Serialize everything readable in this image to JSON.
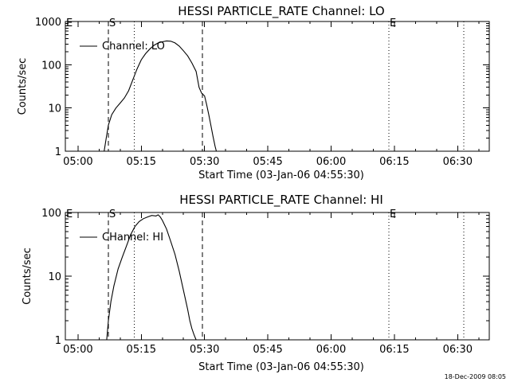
{
  "chart_data": [
    {
      "type": "line",
      "title": "HESSI PARTICLE_RATE Channel: LO",
      "xlabel": "Start Time (03-Jan-06 04:55:30)",
      "ylabel": "Counts/sec",
      "yscale": "log",
      "ylim": [
        1,
        1000
      ],
      "xlim_minutes": [
        -3,
        97.5
      ],
      "x_tick_labels": [
        "05:00",
        "05:15",
        "05:30",
        "05:45",
        "06:00",
        "06:15",
        "06:30"
      ],
      "x_tick_minutes": [
        0,
        15,
        30,
        45,
        60,
        75,
        90
      ],
      "y_tick_labels": [
        "1",
        "10",
        "100",
        "1000"
      ],
      "y_ticks": [
        1,
        10,
        100,
        1000
      ],
      "legend": "Channel: LO",
      "series": [
        {
          "name": "Channel: LO",
          "x_minutes": [
            6.2,
            6.7,
            7.2,
            8,
            9,
            10,
            11,
            12,
            13,
            14,
            15,
            16,
            17,
            18,
            19,
            20,
            21,
            22,
            23,
            24,
            25,
            26,
            27,
            28,
            28.7,
            29.3,
            30,
            30.5,
            31,
            31.5,
            32,
            32.5,
            32.8
          ],
          "y": [
            1,
            2,
            4,
            7,
            10,
            13,
            17,
            25,
            45,
            80,
            130,
            180,
            230,
            280,
            320,
            340,
            355,
            350,
            320,
            270,
            210,
            160,
            110,
            70,
            30,
            22,
            19,
            12,
            7,
            4,
            2.2,
            1.3,
            1
          ]
        }
      ],
      "vlines": [
        {
          "style": "dashed",
          "minute": 7.2,
          "label": "S"
        },
        {
          "style": "dotted",
          "minute": 13.3,
          "label": ""
        },
        {
          "style": "dashed",
          "minute": 29.5,
          "label": ""
        },
        {
          "style": "dotted",
          "minute": 73.7,
          "label": "E"
        },
        {
          "style": "dotted",
          "minute": 91.5,
          "label": ""
        }
      ],
      "marker_E_left": "E"
    },
    {
      "type": "line",
      "title": "HESSI PARTICLE_RATE Channel: HI",
      "xlabel": "Start Time (03-Jan-06 04:55:30)",
      "ylabel": "Counts/sec",
      "yscale": "log",
      "ylim": [
        1,
        100
      ],
      "xlim_minutes": [
        -3,
        97.5
      ],
      "x_tick_labels": [
        "05:00",
        "05:15",
        "05:30",
        "05:45",
        "06:00",
        "06:15",
        "06:30"
      ],
      "x_tick_minutes": [
        0,
        15,
        30,
        45,
        60,
        75,
        90
      ],
      "y_tick_labels": [
        "1",
        "10",
        "100"
      ],
      "y_ticks": [
        1,
        10,
        100
      ],
      "legend": "CHannel: HI",
      "series": [
        {
          "name": "CHannel: HI",
          "x_minutes": [
            6.8,
            7.2,
            7.8,
            8.5,
            9.5,
            10.5,
            11.5,
            12.5,
            13.5,
            14.5,
            15.5,
            16.5,
            17.5,
            18.5,
            19,
            19.5,
            20,
            21,
            22,
            23,
            24,
            25,
            26,
            26.5,
            27,
            27.5,
            28
          ],
          "y": [
            1,
            2,
            4,
            7,
            13,
            20,
            30,
            45,
            60,
            72,
            80,
            85,
            90,
            88,
            92,
            85,
            75,
            55,
            35,
            22,
            12,
            6,
            3,
            2,
            1.5,
            1.2,
            1
          ]
        }
      ],
      "vlines": [
        {
          "style": "dashed",
          "minute": 7.2,
          "label": "S"
        },
        {
          "style": "dotted",
          "minute": 13.3,
          "label": ""
        },
        {
          "style": "dashed",
          "minute": 29.5,
          "label": ""
        },
        {
          "style": "dotted",
          "minute": 73.7,
          "label": "E"
        },
        {
          "style": "dotted",
          "minute": 91.5,
          "label": ""
        }
      ],
      "marker_E_left": "E"
    }
  ],
  "footer": {
    "timestamp": "18-Dec-2009 08:05"
  }
}
